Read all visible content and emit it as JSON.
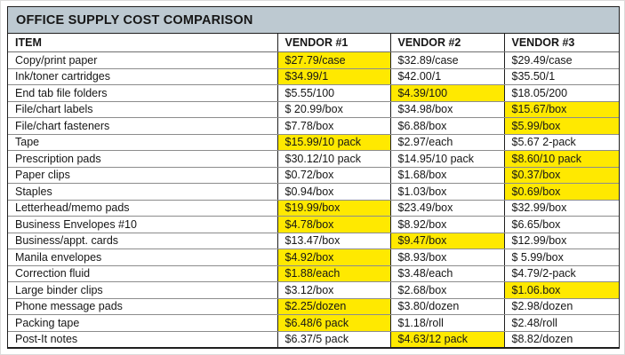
{
  "title": "OFFICE SUPPLY COST COMPARISON",
  "colors": {
    "title_bar_bg": "#bdc9d1",
    "highlight": "#ffe900",
    "border": "#1f1f1f",
    "row_line": "#8c8c8c"
  },
  "chart_data": {
    "type": "table",
    "title": "OFFICE SUPPLY COST COMPARISON",
    "columns": [
      "ITEM",
      "VENDOR #1",
      "VENDOR #2",
      "VENDOR #3"
    ],
    "highlight_meaning": "yellow cell = highlighted vendor price for that item",
    "rows": [
      {
        "cells": [
          "Copy/print paper",
          "$27.79/case",
          "$32.89/case",
          "$29.49/case"
        ],
        "highlight_col": 1
      },
      {
        "cells": [
          "Ink/toner cartridges",
          "$34.99/1",
          "$42.00/1",
          "$35.50/1"
        ],
        "highlight_col": 1
      },
      {
        "cells": [
          "End tab file folders",
          "$5.55/100",
          "$4.39/100",
          "$18.05/200"
        ],
        "highlight_col": 2
      },
      {
        "cells": [
          "File/chart labels",
          "$ 20.99/box",
          "$34.98/box",
          "$15.67/box"
        ],
        "highlight_col": 3
      },
      {
        "cells": [
          "File/chart fasteners",
          "$7.78/box",
          "$6.88/box",
          "$5.99/box"
        ],
        "highlight_col": 3
      },
      {
        "cells": [
          "Tape",
          "$15.99/10 pack",
          "$2.97/each",
          "$5.67 2-pack"
        ],
        "highlight_col": 1
      },
      {
        "cells": [
          "Prescription pads",
          "$30.12/10 pack",
          "$14.95/10 pack",
          "$8.60/10 pack"
        ],
        "highlight_col": 3
      },
      {
        "cells": [
          "Paper clips",
          "$0.72/box",
          "$1.68/box",
          "$0.37/box"
        ],
        "highlight_col": 3
      },
      {
        "cells": [
          "Staples",
          "$0.94/box",
          "$1.03/box",
          "$0.69/box"
        ],
        "highlight_col": 3
      },
      {
        "cells": [
          "Letterhead/memo pads",
          "$19.99/box",
          "$23.49/box",
          "$32.99/box"
        ],
        "highlight_col": 1
      },
      {
        "cells": [
          "Business Envelopes #10",
          "$4.78/box",
          "$8.92/box",
          "$6.65/box"
        ],
        "highlight_col": 1
      },
      {
        "cells": [
          "Business/appt. cards",
          "$13.47/box",
          "$9.47/box",
          "$12.99/box"
        ],
        "highlight_col": 2
      },
      {
        "cells": [
          "Manila envelopes",
          "$4.92/box",
          "$8.93/box",
          "$ 5.99/box"
        ],
        "highlight_col": 1
      },
      {
        "cells": [
          "Correction fluid",
          "$1.88/each",
          "$3.48/each",
          "$4.79/2-pack"
        ],
        "highlight_col": 1
      },
      {
        "cells": [
          "Large binder clips",
          "$3.12/box",
          "$2.68/box",
          "$1.06.box"
        ],
        "highlight_col": 3
      },
      {
        "cells": [
          "Phone message pads",
          "$2.25/dozen",
          "$3.80/dozen",
          "$2.98/dozen"
        ],
        "highlight_col": 1
      },
      {
        "cells": [
          "Packing tape",
          "$6.48/6 pack",
          "$1.18/roll",
          "$2.48/roll"
        ],
        "highlight_col": 1
      },
      {
        "cells": [
          "Post-It notes",
          "$6.37/5 pack",
          "$4.63/12 pack",
          "$8.82/dozen"
        ],
        "highlight_col": 2
      }
    ]
  }
}
